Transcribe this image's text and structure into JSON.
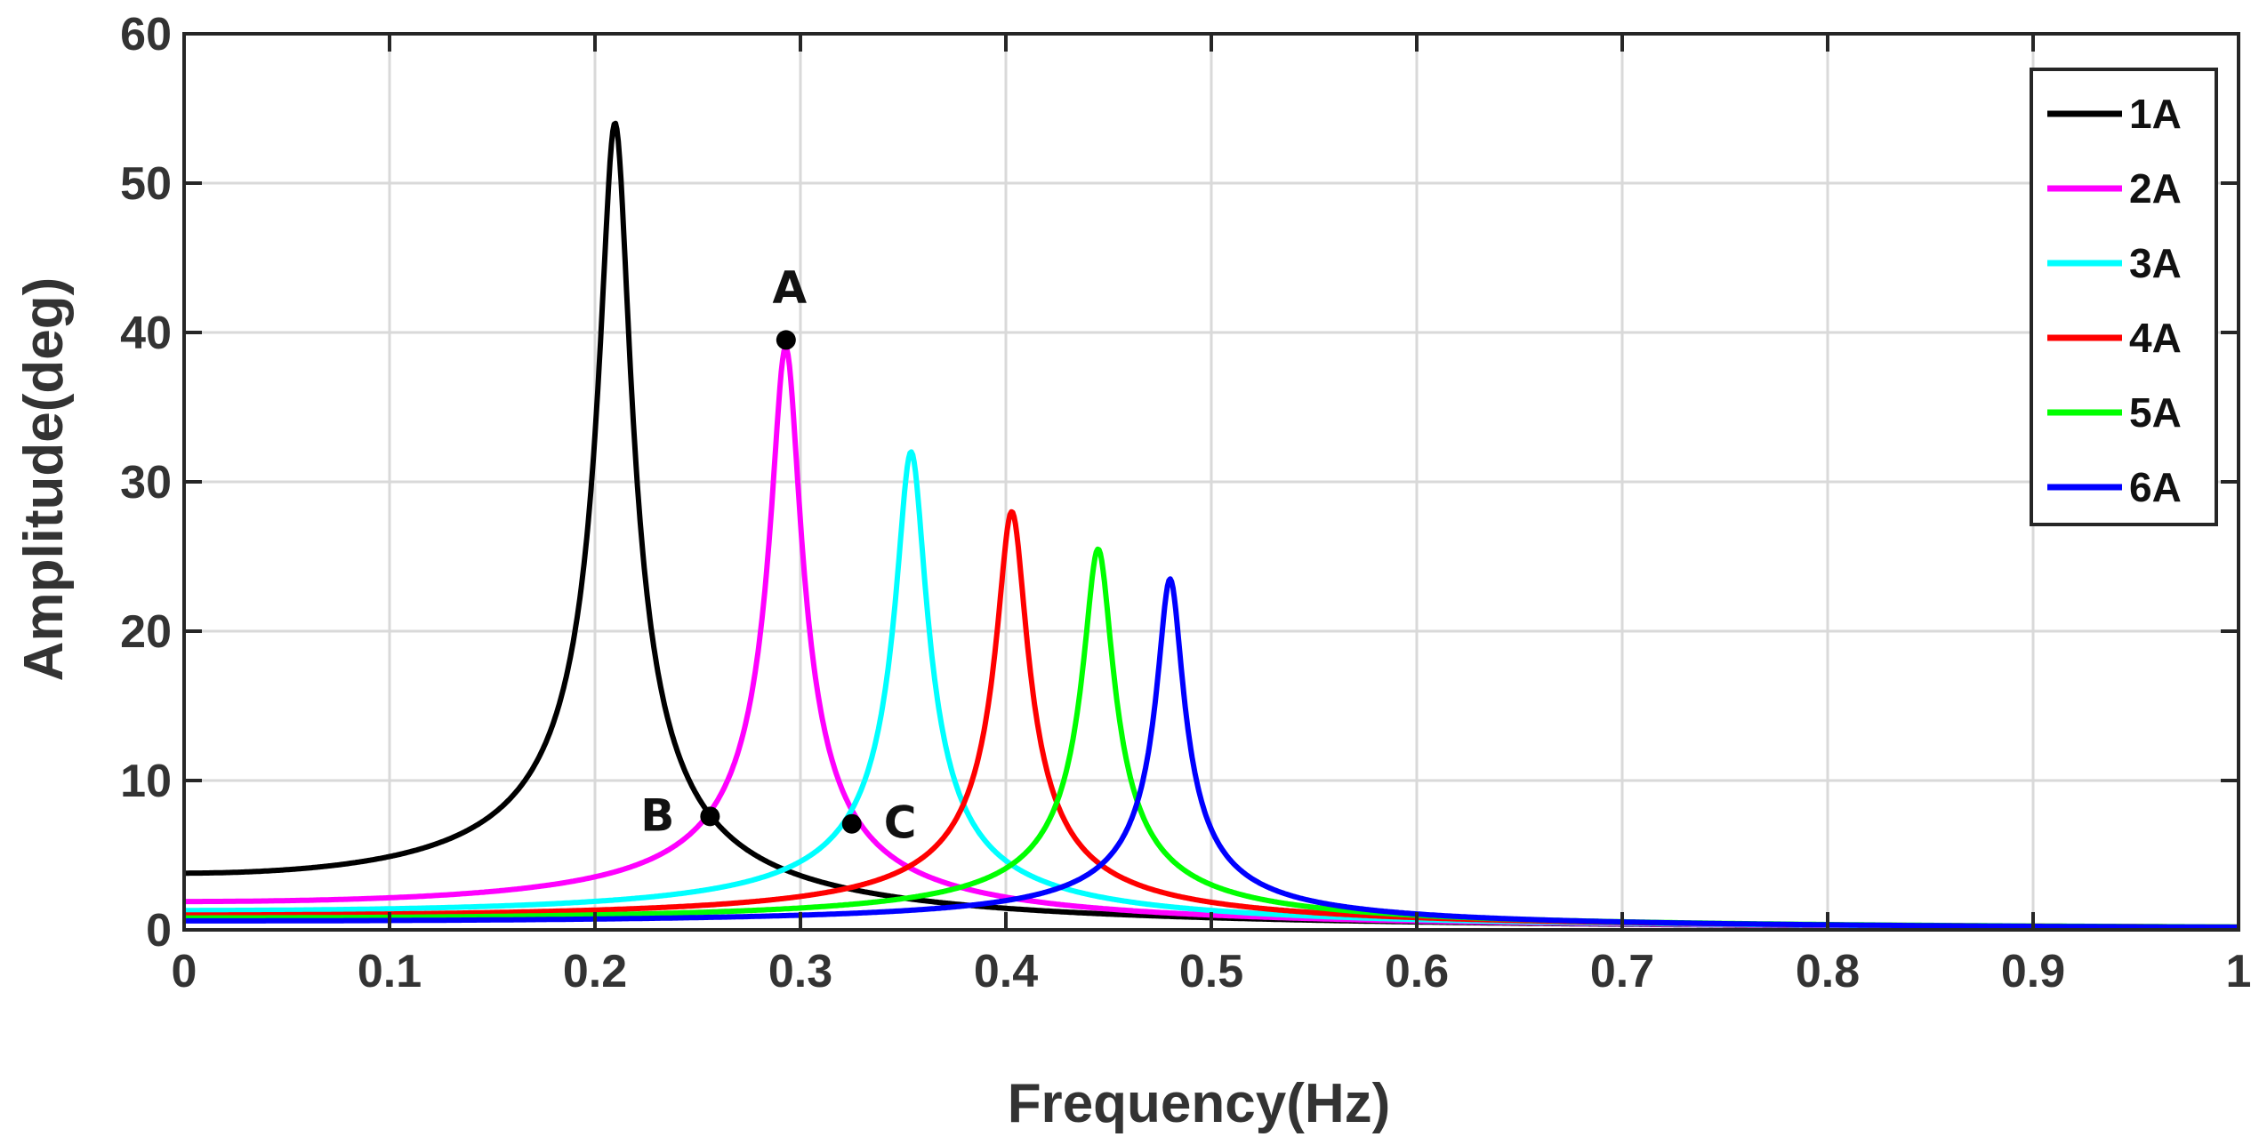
{
  "chart_data": {
    "type": "line",
    "title": "",
    "xlabel": "Frequency(Hz)",
    "ylabel": "Amplitude(deg)",
    "xlim": [
      0,
      1
    ],
    "ylim": [
      0,
      60
    ],
    "xticks": [
      0,
      0.1,
      0.2,
      0.3,
      0.4,
      0.5,
      0.6,
      0.7,
      0.8,
      0.9,
      1
    ],
    "xtick_labels": [
      "0",
      "0.1",
      "0.2",
      "0.3",
      "0.4",
      "0.5",
      "0.6",
      "0.7",
      "0.8",
      "0.9",
      "1"
    ],
    "yticks": [
      0,
      10,
      20,
      30,
      40,
      50,
      60
    ],
    "ytick_labels": [
      "0",
      "10",
      "20",
      "30",
      "40",
      "50",
      "60"
    ],
    "grid": true,
    "legend_position": "top-right",
    "series": [
      {
        "name": "1A",
        "color": "#000000",
        "peak_freq": 0.21,
        "peak_amp": 54,
        "dc_amp": 3.8
      },
      {
        "name": "2A",
        "color": "#ff00ff",
        "peak_freq": 0.293,
        "peak_amp": 39,
        "dc_amp": 1.9
      },
      {
        "name": "3A",
        "color": "#00ffff",
        "peak_freq": 0.354,
        "peak_amp": 32,
        "dc_amp": 1.3
      },
      {
        "name": "4A",
        "color": "#ff0000",
        "peak_freq": 0.403,
        "peak_amp": 28,
        "dc_amp": 1.0
      },
      {
        "name": "5A",
        "color": "#00ff00",
        "peak_freq": 0.445,
        "peak_amp": 25.5,
        "dc_amp": 0.8
      },
      {
        "name": "6A",
        "color": "#0000ff",
        "peak_freq": 0.48,
        "peak_amp": 23.5,
        "dc_amp": 0.6
      }
    ],
    "annotations": [
      {
        "label": "A",
        "x": 0.293,
        "y": 39.5
      },
      {
        "label": "B",
        "x": 0.256,
        "y": 7.6
      },
      {
        "label": "C",
        "x": 0.325,
        "y": 7.1
      }
    ]
  }
}
